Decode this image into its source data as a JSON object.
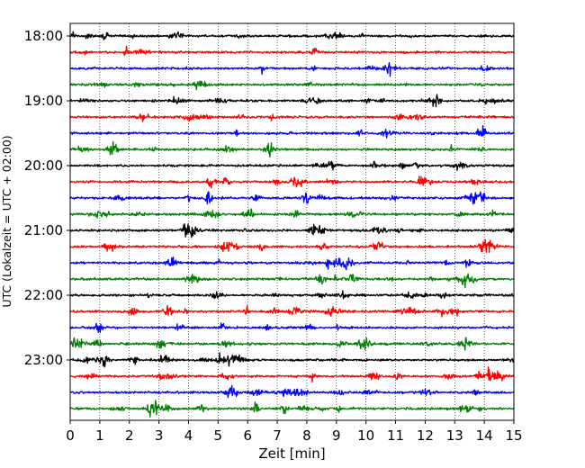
{
  "chart_data": {
    "type": "line",
    "title": "",
    "xlabel": "Zeit  [min]",
    "ylabel": "UTC (Lokalzeit = UTC + 02:00)",
    "xlim": [
      0,
      15
    ],
    "x_ticks": [
      "0",
      "1",
      "2",
      "3",
      "4",
      "5",
      "6",
      "7",
      "8",
      "9",
      "10",
      "11",
      "12",
      "13",
      "14",
      "15"
    ],
    "y_tick_labels": [
      "18:00",
      "19:00",
      "20:00",
      "21:00",
      "22:00",
      "23:00"
    ],
    "grid": "vertical dotted",
    "trace_interval_min": 15,
    "trace_count": 24,
    "trace_colors": [
      "#000000",
      "#ff0000",
      "#0000ff",
      "#008000"
    ],
    "traces": [
      {
        "start": "18:00",
        "color": "#000000"
      },
      {
        "start": "18:15",
        "color": "#ff0000"
      },
      {
        "start": "18:30",
        "color": "#0000ff"
      },
      {
        "start": "18:45",
        "color": "#008000"
      },
      {
        "start": "19:00",
        "color": "#000000"
      },
      {
        "start": "19:15",
        "color": "#ff0000"
      },
      {
        "start": "19:30",
        "color": "#0000ff"
      },
      {
        "start": "19:45",
        "color": "#008000"
      },
      {
        "start": "20:00",
        "color": "#000000"
      },
      {
        "start": "20:15",
        "color": "#ff0000"
      },
      {
        "start": "20:30",
        "color": "#0000ff"
      },
      {
        "start": "20:45",
        "color": "#008000"
      },
      {
        "start": "21:00",
        "color": "#000000"
      },
      {
        "start": "21:15",
        "color": "#ff0000"
      },
      {
        "start": "21:30",
        "color": "#0000ff"
      },
      {
        "start": "21:45",
        "color": "#008000"
      },
      {
        "start": "22:00",
        "color": "#000000"
      },
      {
        "start": "22:15",
        "color": "#ff0000"
      },
      {
        "start": "22:30",
        "color": "#0000ff"
      },
      {
        "start": "22:45",
        "color": "#008000"
      },
      {
        "start": "23:00",
        "color": "#000000"
      },
      {
        "start": "23:15",
        "color": "#ff0000"
      },
      {
        "start": "23:30",
        "color": "#0000ff"
      },
      {
        "start": "23:45",
        "color": "#008000"
      }
    ]
  }
}
